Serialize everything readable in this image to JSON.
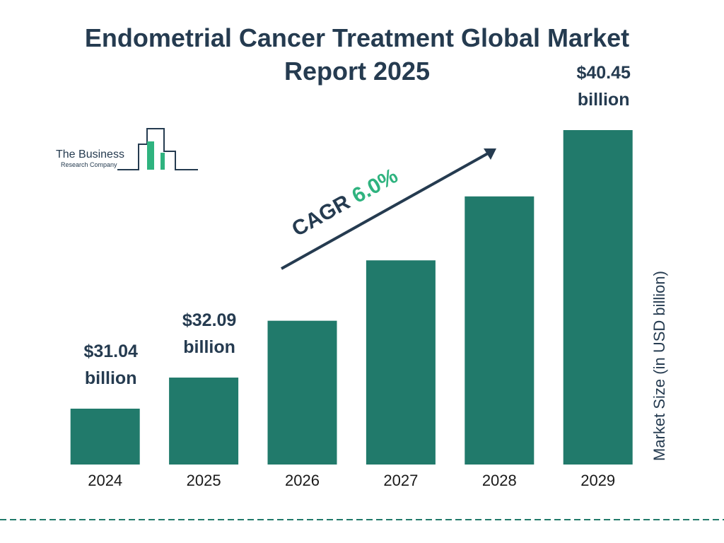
{
  "chart_data": {
    "type": "bar",
    "title": "Endometrial Cancer Treatment Global Market Report 2025",
    "categories": [
      "2024",
      "2025",
      "2026",
      "2027",
      "2028",
      "2029"
    ],
    "values": [
      31.04,
      32.09,
      34.01,
      36.05,
      38.21,
      40.45
    ],
    "value_labels": [
      "$31.04 billion",
      "$32.09 billion",
      null,
      null,
      null,
      "$40.45 billion"
    ],
    "color": "#217a6b",
    "y_axis_label": "Market Size (in USD billion)",
    "annotation": {
      "label": "CAGR",
      "value": "6.0%"
    }
  },
  "logo": {
    "line1": "The Business",
    "line2": "Research Company"
  }
}
